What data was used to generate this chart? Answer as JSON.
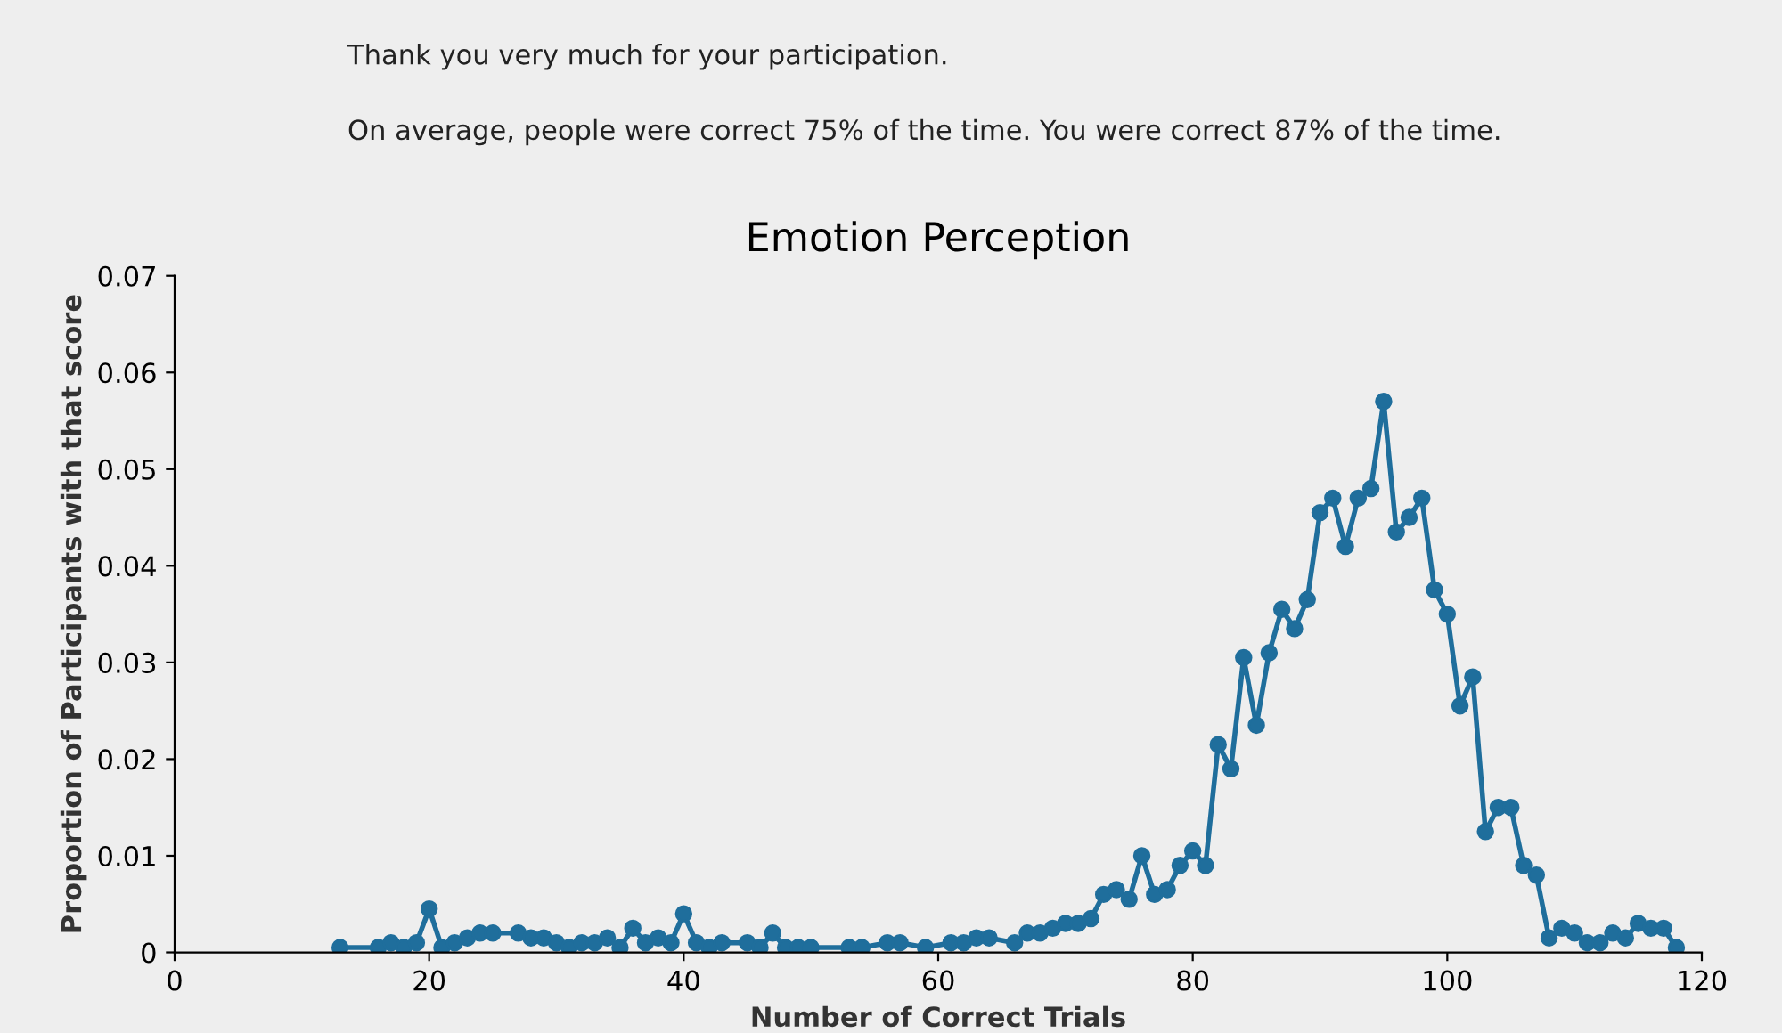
{
  "chart_data": {
    "type": "line",
    "title": "Emotion Perception",
    "xlabel": "Number of Correct Trials",
    "ylabel": "Proportion of Participants with that score",
    "annotations": [
      "Thank you very much for your participation.",
      "On average, people were correct 75% of the time. You were correct 87% of the time."
    ],
    "x": [
      13,
      16,
      17,
      18,
      19,
      20,
      21,
      22,
      23,
      24,
      25,
      27,
      28,
      29,
      30,
      31,
      32,
      33,
      34,
      35,
      36,
      37,
      38,
      39,
      40,
      41,
      42,
      43,
      45,
      46,
      47,
      48,
      49,
      50,
      53,
      54,
      56,
      57,
      59,
      61,
      62,
      63,
      64,
      66,
      67,
      68,
      69,
      70,
      71,
      72,
      73,
      74,
      75,
      76,
      77,
      78,
      79,
      80,
      81,
      82,
      83,
      84,
      85,
      86,
      87,
      88,
      89,
      90,
      91,
      92,
      93,
      94,
      95,
      96,
      97,
      98,
      99,
      100,
      101,
      102,
      103,
      104,
      105,
      106,
      107,
      108,
      109,
      110,
      111,
      112,
      113,
      114,
      115,
      116,
      117,
      118
    ],
    "series": [
      {
        "color": "#1f6e9c",
        "values": [
          0.0005,
          0.0005,
          0.001,
          0.0005,
          0.001,
          0.0045,
          0.0005,
          0.001,
          0.0015,
          0.002,
          0.002,
          0.002,
          0.0015,
          0.0015,
          0.001,
          0.0005,
          0.001,
          0.001,
          0.0015,
          0.0005,
          0.0025,
          0.001,
          0.0015,
          0.001,
          0.004,
          0.001,
          0.0005,
          0.001,
          0.001,
          0.0005,
          0.002,
          0.0005,
          0.0005,
          0.0005,
          0.0005,
          0.0005,
          0.001,
          0.001,
          0.0005,
          0.001,
          0.001,
          0.0015,
          0.0015,
          0.001,
          0.002,
          0.002,
          0.0025,
          0.003,
          0.003,
          0.0035,
          0.006,
          0.0065,
          0.0055,
          0.01,
          0.006,
          0.0065,
          0.009,
          0.0105,
          0.009,
          0.0215,
          0.019,
          0.0305,
          0.0235,
          0.031,
          0.0355,
          0.0335,
          0.0365,
          0.0455,
          0.047,
          0.042,
          0.047,
          0.048,
          0.057,
          0.0435,
          0.045,
          0.047,
          0.0375,
          0.035,
          0.0255,
          0.0285,
          0.0125,
          0.015,
          0.015,
          0.009,
          0.008,
          0.0015,
          0.0025,
          0.002,
          0.001,
          0.001,
          0.002,
          0.0015,
          0.003,
          0.0025,
          0.0025,
          0.0005
        ]
      }
    ],
    "xlim": [
      0,
      120
    ],
    "xticks": [
      0,
      20,
      40,
      60,
      80,
      100,
      120
    ],
    "ylim": [
      0,
      0.07
    ],
    "yticks": [
      0,
      0.01,
      0.02,
      0.03,
      0.04,
      0.05,
      0.06,
      0.07
    ],
    "grid": false,
    "legend": false,
    "marker": "circle",
    "line_style": "solid"
  }
}
